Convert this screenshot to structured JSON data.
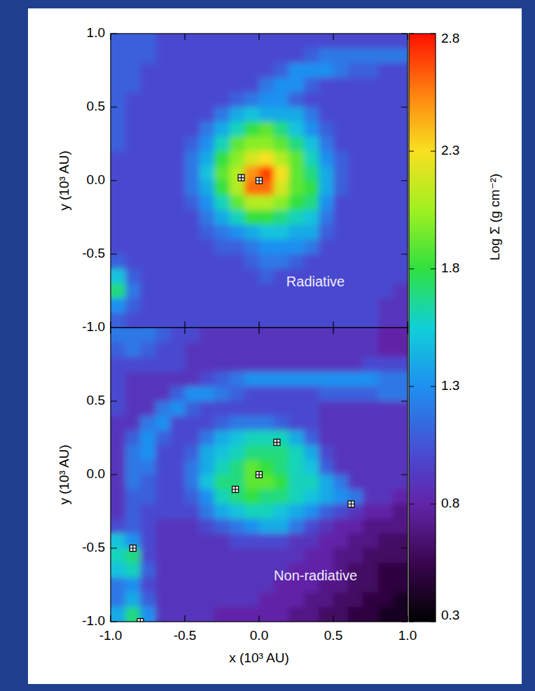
{
  "chart_data": [
    {
      "type": "heatmap",
      "annotation": "Radiative",
      "ylabel": "y (10³ AU)",
      "tick_labels": "y",
      "xlim": [
        -1,
        1
      ],
      "ylim": [
        -1,
        1
      ],
      "xticks": [
        -1,
        -0.5,
        0,
        0.5,
        1
      ],
      "yticks": [
        {
          "value": -1,
          "label": "-1.0"
        },
        -0.5,
        {
          "value": 0,
          "label": "0.0"
        },
        0.5,
        {
          "value": 1,
          "label": "1.0"
        }
      ],
      "colorbar_range": [
        0.3,
        2.8
      ],
      "colorbar_ticks": [
        0.3,
        0.8,
        1.3,
        1.8,
        2.3,
        2.8
      ],
      "colorbar_label": "Log Σ (g cm⁻²)",
      "marker": "square",
      "points": {
        "x": [
          -0.12,
          0.0
        ],
        "y": [
          0.02,
          0.0
        ]
      },
      "cells": [
        [
          1.1,
          1.1,
          1.1,
          1.0,
          1.0,
          1.0,
          1.0,
          1.0,
          1.0,
          1.0,
          1.0,
          1.0,
          1.0,
          1.0,
          1.0,
          1.0,
          1.0,
          1.0,
          1.0,
          1.0
        ],
        [
          1.1,
          1.1,
          1.1,
          1.0,
          1.0,
          1.0,
          1.0,
          1.0,
          1.0,
          1.0,
          1.0,
          1.0,
          1.0,
          1.1,
          1.2,
          1.2,
          1.2,
          1.2,
          1.2,
          1.2
        ],
        [
          1.1,
          1.1,
          1.0,
          1.0,
          1.0,
          1.0,
          1.0,
          1.0,
          1.0,
          1.0,
          1.0,
          1.1,
          1.3,
          1.3,
          1.3,
          1.2,
          1.1,
          1.1,
          1.0,
          1.0
        ],
        [
          1.1,
          1.1,
          1.0,
          1.0,
          1.0,
          1.0,
          1.0,
          1.0,
          1.0,
          1.0,
          1.2,
          1.3,
          1.3,
          1.1,
          1.0,
          1.0,
          1.0,
          1.0,
          1.0,
          1.0
        ],
        [
          1.1,
          1.0,
          1.0,
          1.0,
          1.0,
          1.0,
          1.0,
          1.0,
          1.1,
          1.2,
          1.3,
          1.3,
          1.1,
          1.0,
          1.0,
          1.0,
          1.0,
          1.0,
          1.0,
          1.0
        ],
        [
          1.1,
          1.0,
          1.0,
          1.0,
          1.0,
          1.0,
          1.0,
          1.2,
          1.4,
          1.5,
          1.4,
          1.4,
          1.4,
          1.2,
          1.0,
          1.0,
          1.0,
          1.0,
          1.0,
          1.0
        ],
        [
          1.1,
          1.0,
          1.0,
          1.0,
          1.0,
          1.0,
          1.2,
          1.4,
          1.6,
          1.8,
          1.9,
          1.7,
          1.5,
          1.3,
          1.1,
          1.0,
          1.0,
          1.0,
          1.0,
          1.0
        ],
        [
          1.1,
          1.0,
          1.0,
          1.0,
          1.0,
          1.1,
          1.3,
          1.6,
          1.9,
          2.0,
          2.0,
          1.9,
          1.7,
          1.5,
          1.2,
          1.0,
          1.0,
          1.0,
          1.0,
          1.0
        ],
        [
          1.0,
          1.0,
          1.0,
          1.0,
          1.0,
          1.2,
          1.4,
          1.8,
          2.0,
          2.2,
          2.3,
          2.1,
          1.9,
          1.6,
          1.3,
          1.1,
          1.0,
          1.0,
          1.0,
          1.0
        ],
        [
          1.0,
          1.0,
          1.0,
          1.0,
          1.0,
          1.2,
          1.5,
          1.9,
          2.1,
          2.5,
          2.7,
          2.3,
          1.9,
          1.7,
          1.4,
          1.1,
          1.0,
          1.0,
          1.0,
          1.0
        ],
        [
          1.0,
          1.0,
          1.0,
          1.0,
          1.0,
          1.2,
          1.4,
          1.8,
          2.1,
          2.6,
          2.6,
          2.2,
          1.9,
          1.8,
          1.4,
          1.1,
          1.0,
          1.0,
          1.0,
          1.0
        ],
        [
          1.0,
          1.0,
          1.0,
          1.0,
          1.0,
          1.1,
          1.3,
          1.6,
          1.9,
          2.1,
          2.1,
          2.0,
          1.8,
          1.7,
          1.3,
          1.0,
          1.0,
          1.0,
          1.0,
          1.0
        ],
        [
          1.0,
          1.0,
          1.0,
          1.0,
          1.0,
          1.0,
          1.2,
          1.4,
          1.6,
          1.8,
          1.8,
          1.7,
          1.6,
          1.5,
          1.2,
          1.0,
          1.0,
          1.0,
          1.0,
          1.0
        ],
        [
          1.0,
          1.0,
          1.0,
          1.0,
          1.0,
          1.0,
          1.1,
          1.2,
          1.3,
          1.4,
          1.5,
          1.5,
          1.4,
          1.4,
          1.1,
          1.0,
          1.0,
          1.0,
          1.0,
          1.0
        ],
        [
          1.0,
          1.0,
          1.0,
          1.0,
          1.0,
          1.0,
          1.0,
          1.1,
          1.1,
          1.2,
          1.3,
          1.3,
          1.3,
          1.2,
          1.0,
          1.0,
          1.0,
          1.0,
          1.0,
          1.0
        ],
        [
          1.1,
          1.0,
          1.0,
          1.0,
          1.0,
          1.0,
          1.0,
          1.0,
          1.0,
          1.1,
          1.2,
          1.2,
          1.1,
          1.0,
          1.0,
          1.0,
          1.0,
          1.0,
          1.0,
          1.0
        ],
        [
          1.5,
          1.1,
          1.0,
          1.0,
          1.0,
          1.0,
          1.0,
          1.0,
          1.0,
          1.0,
          1.1,
          1.0,
          1.0,
          1.0,
          1.0,
          1.0,
          1.0,
          1.0,
          1.0,
          1.0
        ],
        [
          1.7,
          1.2,
          1.0,
          1.0,
          1.0,
          1.0,
          1.0,
          1.0,
          1.0,
          1.0,
          1.0,
          1.0,
          1.0,
          1.0,
          1.0,
          1.0,
          1.0,
          1.0,
          1.0,
          0.9
        ],
        [
          1.3,
          1.1,
          1.0,
          1.0,
          1.0,
          1.0,
          1.0,
          1.0,
          1.0,
          1.0,
          1.0,
          1.0,
          1.0,
          1.0,
          1.0,
          1.0,
          1.0,
          1.0,
          0.9,
          0.9
        ],
        [
          1.1,
          1.0,
          1.0,
          1.0,
          1.0,
          1.0,
          1.0,
          1.0,
          1.0,
          1.0,
          1.0,
          1.0,
          1.0,
          1.0,
          1.0,
          1.0,
          1.0,
          1.0,
          0.9,
          0.9
        ]
      ]
    },
    {
      "type": "heatmap",
      "annotation": "Non-radiative",
      "ylabel": "y (10³ AU)",
      "xlabel": "x (10³ AU)",
      "xlim": [
        -1,
        1
      ],
      "ylim": [
        -1,
        1
      ],
      "xticks": [
        {
          "value": -1,
          "label": "-1.0"
        },
        -0.5,
        {
          "value": 0,
          "label": "0.0"
        },
        0.5,
        {
          "value": 1,
          "label": "1.0"
        }
      ],
      "yticks": [
        {
          "value": -1,
          "label": "-1.0"
        },
        -0.5,
        {
          "value": 0,
          "label": "0.0"
        },
        0.5
      ],
      "marker": "square",
      "points": {
        "x": [
          0.0,
          0.12,
          -0.16,
          0.62,
          -0.85,
          -0.8
        ],
        "y": [
          0.0,
          0.22,
          -0.1,
          -0.2,
          -0.5,
          -1.0
        ]
      },
      "cells": [
        [
          1.2,
          1.2,
          1.2,
          1.1,
          1.0,
          1.0,
          0.9,
          0.9,
          0.9,
          0.9,
          0.9,
          0.9,
          0.9,
          0.9,
          0.9,
          0.9,
          0.9,
          0.9,
          0.8,
          0.8
        ],
        [
          1.1,
          1.2,
          1.1,
          1.0,
          1.0,
          0.9,
          0.9,
          0.9,
          0.9,
          0.9,
          0.9,
          0.9,
          0.9,
          0.9,
          0.9,
          0.9,
          0.9,
          0.9,
          0.8,
          0.8
        ],
        [
          1.0,
          1.0,
          1.0,
          1.0,
          1.0,
          0.9,
          0.9,
          0.9,
          0.9,
          0.9,
          0.9,
          0.9,
          0.9,
          0.9,
          0.9,
          0.9,
          0.9,
          1.0,
          1.0,
          1.0
        ],
        [
          1.0,
          0.9,
          0.9,
          0.9,
          0.9,
          0.9,
          1.0,
          1.1,
          1.2,
          1.3,
          1.3,
          1.3,
          1.3,
          1.3,
          1.3,
          1.3,
          1.3,
          1.3,
          1.2,
          1.2
        ],
        [
          1.0,
          0.9,
          0.9,
          0.9,
          1.1,
          1.3,
          1.3,
          1.2,
          1.1,
          1.0,
          1.0,
          1.0,
          1.0,
          1.0,
          1.1,
          1.1,
          1.1,
          1.1,
          1.2,
          1.2
        ],
        [
          1.0,
          0.9,
          0.9,
          1.2,
          1.3,
          1.1,
          1.0,
          1.0,
          1.0,
          1.0,
          1.0,
          1.0,
          1.0,
          1.0,
          0.9,
          0.9,
          0.9,
          0.9,
          0.9,
          0.9
        ],
        [
          0.9,
          0.9,
          1.2,
          1.3,
          1.0,
          1.0,
          1.0,
          1.1,
          1.2,
          1.2,
          1.2,
          1.1,
          1.0,
          1.0,
          0.9,
          0.9,
          0.9,
          0.9,
          0.9,
          0.9
        ],
        [
          0.9,
          1.1,
          1.3,
          1.1,
          1.0,
          1.0,
          1.2,
          1.4,
          1.5,
          1.6,
          1.6,
          1.6,
          1.4,
          1.1,
          0.9,
          0.9,
          0.9,
          0.9,
          0.9,
          0.9
        ],
        [
          0.9,
          1.2,
          1.3,
          1.0,
          1.0,
          1.1,
          1.4,
          1.5,
          1.6,
          1.7,
          1.7,
          1.7,
          1.6,
          1.4,
          1.0,
          0.9,
          0.9,
          0.9,
          0.9,
          0.9
        ],
        [
          0.9,
          1.2,
          1.2,
          1.0,
          1.0,
          1.2,
          1.4,
          1.6,
          1.7,
          1.9,
          1.8,
          1.7,
          1.6,
          1.5,
          1.1,
          0.9,
          0.9,
          0.9,
          0.9,
          0.9
        ],
        [
          0.9,
          1.2,
          1.1,
          1.0,
          1.0,
          1.2,
          1.5,
          1.7,
          1.7,
          1.9,
          1.9,
          1.8,
          1.6,
          1.6,
          1.4,
          1.2,
          0.9,
          0.9,
          0.9,
          0.9
        ],
        [
          0.9,
          1.1,
          1.1,
          1.0,
          1.0,
          1.1,
          1.3,
          1.6,
          1.7,
          1.8,
          1.7,
          1.7,
          1.6,
          1.5,
          1.4,
          1.3,
          1.2,
          0.9,
          0.9,
          0.8
        ],
        [
          0.9,
          1.1,
          1.0,
          1.0,
          1.0,
          1.0,
          1.2,
          1.4,
          1.5,
          1.6,
          1.6,
          1.5,
          1.4,
          1.3,
          1.1,
          1.0,
          0.9,
          0.8,
          0.8,
          0.7
        ],
        [
          1.0,
          1.1,
          1.0,
          0.9,
          0.9,
          0.9,
          1.0,
          1.1,
          1.2,
          1.3,
          1.4,
          1.4,
          1.2,
          1.0,
          0.9,
          0.8,
          0.8,
          0.7,
          0.7,
          0.7
        ],
        [
          1.5,
          1.3,
          1.0,
          0.9,
          0.9,
          0.9,
          0.9,
          0.9,
          1.0,
          1.0,
          1.0,
          1.0,
          0.9,
          0.9,
          0.8,
          0.8,
          0.7,
          0.7,
          0.6,
          0.6
        ],
        [
          1.6,
          1.7,
          1.0,
          0.9,
          0.9,
          0.9,
          0.9,
          0.9,
          0.9,
          0.9,
          0.9,
          0.9,
          0.9,
          0.8,
          0.8,
          0.7,
          0.7,
          0.6,
          0.6,
          0.6
        ],
        [
          1.5,
          1.6,
          1.1,
          0.9,
          0.9,
          0.9,
          0.9,
          0.9,
          0.9,
          0.9,
          0.9,
          0.9,
          0.8,
          0.8,
          0.8,
          0.7,
          0.6,
          0.6,
          0.5,
          0.5
        ],
        [
          1.2,
          1.3,
          1.0,
          0.9,
          0.9,
          0.9,
          0.9,
          0.9,
          0.9,
          0.9,
          0.9,
          0.8,
          0.8,
          0.8,
          0.7,
          0.7,
          0.6,
          0.6,
          0.5,
          0.5
        ],
        [
          1.2,
          1.4,
          1.1,
          0.9,
          0.9,
          0.9,
          0.9,
          0.9,
          0.9,
          0.9,
          0.8,
          0.8,
          0.8,
          0.7,
          0.7,
          0.6,
          0.6,
          0.5,
          0.5,
          0.4
        ],
        [
          1.4,
          1.7,
          1.3,
          0.9,
          0.9,
          0.9,
          0.9,
          0.8,
          0.8,
          0.8,
          0.8,
          0.8,
          0.7,
          0.7,
          0.6,
          0.6,
          0.5,
          0.5,
          0.4,
          0.4
        ]
      ]
    }
  ]
}
